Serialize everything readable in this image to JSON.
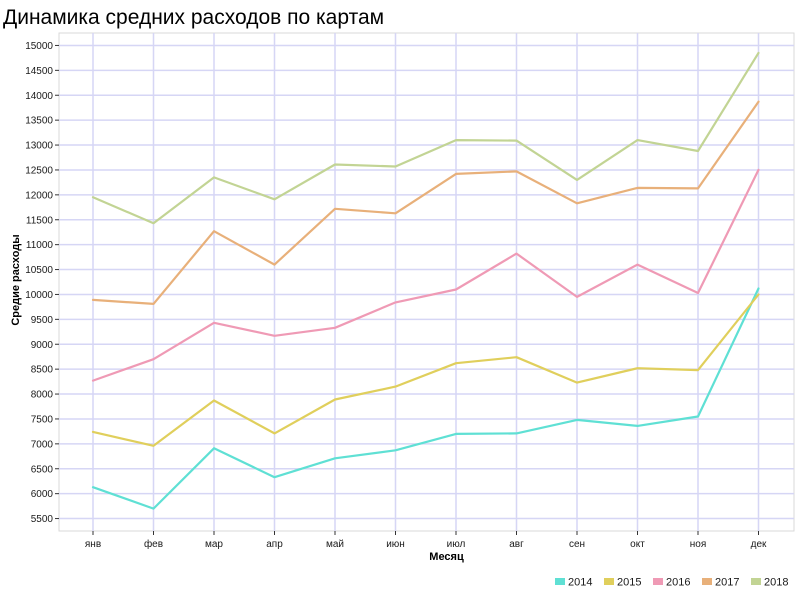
{
  "chart_data": {
    "type": "line",
    "title": "Динамика средних расходов по картам",
    "xlabel": "Месяц",
    "ylabel": "Средие расходы",
    "categories": [
      "янв",
      "фев",
      "мар",
      "апр",
      "май",
      "июн",
      "июл",
      "авг",
      "сен",
      "окт",
      "ноя",
      "дек"
    ],
    "ylim": [
      5250,
      15250
    ],
    "yticks": [
      5500,
      6000,
      6500,
      7000,
      7500,
      8000,
      8500,
      9000,
      9500,
      10000,
      10500,
      11000,
      11500,
      12000,
      12500,
      13000,
      13500,
      14000,
      14500,
      15000
    ],
    "grid": true,
    "legend_position": "bottom-right",
    "series": [
      {
        "name": "2014",
        "color": "#5fe0d4",
        "values": [
          6130,
          5700,
          6910,
          6330,
          6710,
          6870,
          7200,
          7210,
          7480,
          7360,
          7550,
          10120
        ]
      },
      {
        "name": "2015",
        "color": "#e0cf5c",
        "values": [
          7240,
          6960,
          7870,
          7210,
          7890,
          8150,
          8620,
          8740,
          8230,
          8520,
          8480,
          10000
        ]
      },
      {
        "name": "2016",
        "color": "#ef9ab5",
        "values": [
          8270,
          8700,
          9430,
          9170,
          9330,
          9840,
          10100,
          10820,
          9950,
          10600,
          10030,
          12500
        ]
      },
      {
        "name": "2017",
        "color": "#e8b07a",
        "values": [
          9890,
          9810,
          11270,
          10600,
          11720,
          11630,
          12420,
          12470,
          11830,
          12140,
          12130,
          13870
        ]
      },
      {
        "name": "2018",
        "color": "#c2d494",
        "values": [
          11950,
          11430,
          12350,
          11910,
          12610,
          12570,
          13100,
          13090,
          12300,
          13100,
          12880,
          14850
        ]
      }
    ]
  }
}
